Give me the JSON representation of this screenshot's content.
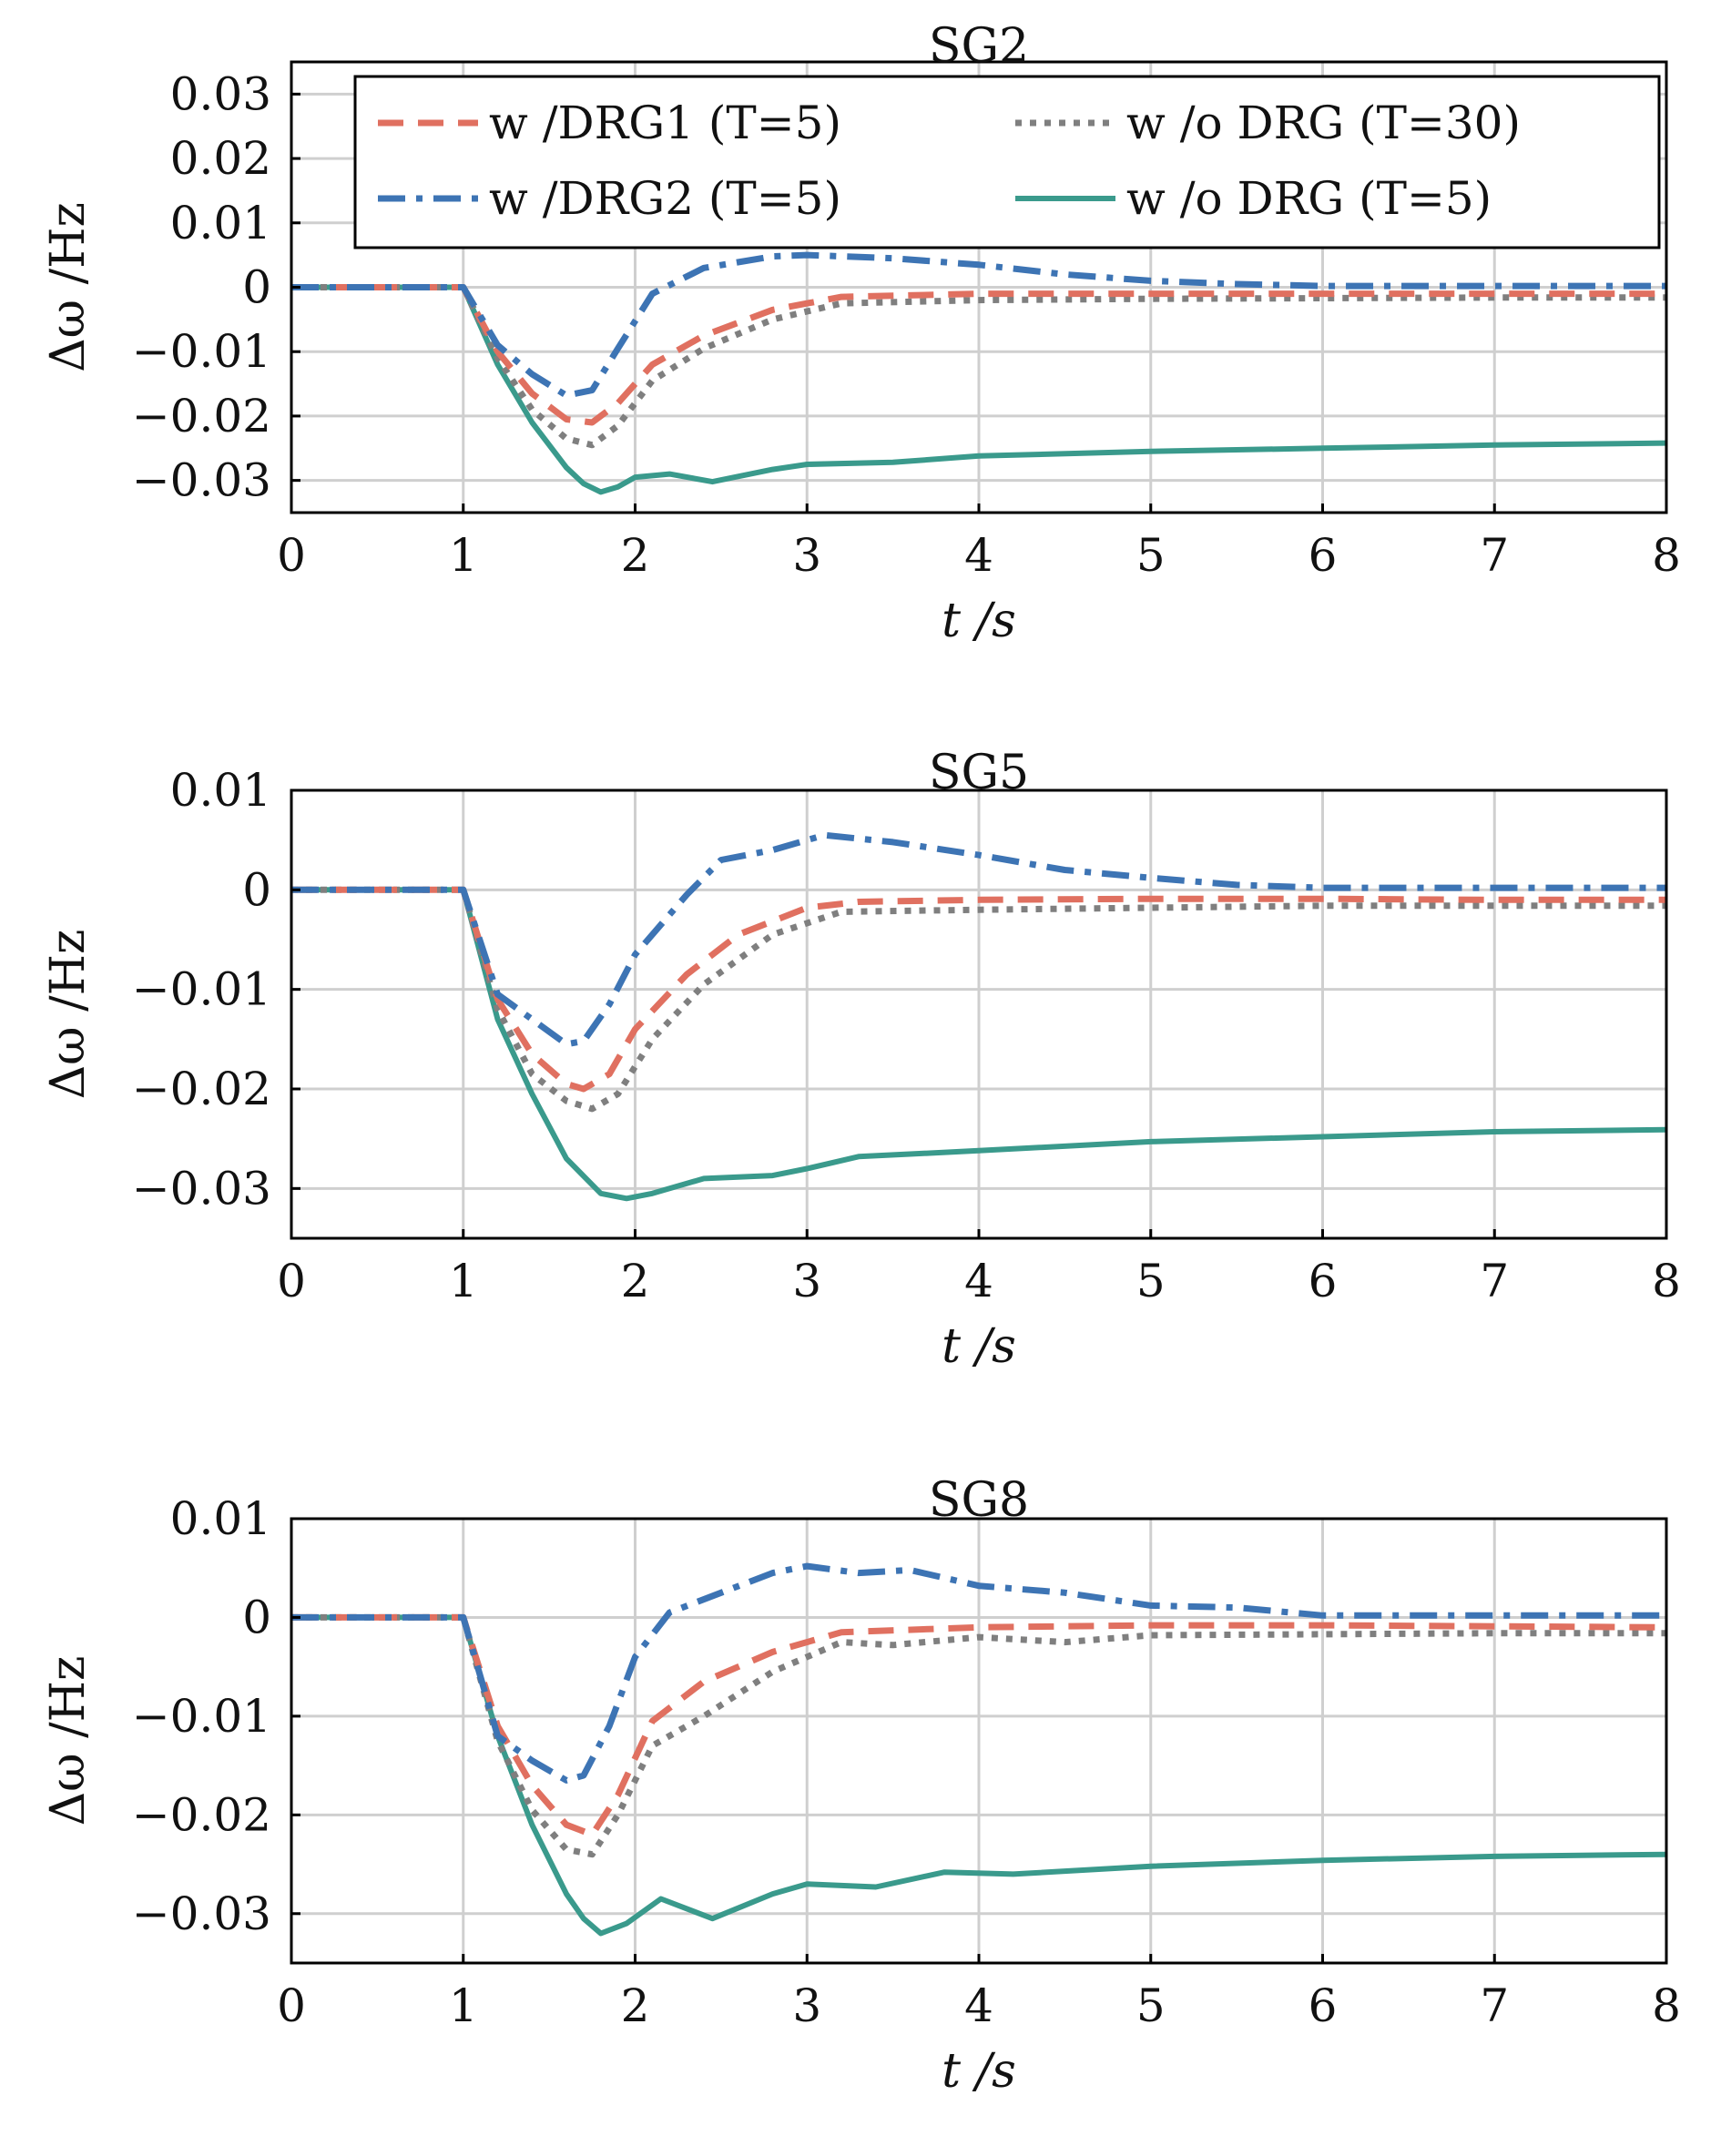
{
  "figure": {
    "legend": {
      "entries": [
        {
          "label": "w /DRG1 (T=5)",
          "color": "#e07060",
          "dash": "dashed"
        },
        {
          "label": "w /o DRG (T=30)",
          "color": "#7f7f7f",
          "dash": "dotted"
        },
        {
          "label": "w /DRG2 (T=5)",
          "color": "#3d74b4",
          "dash": "dashdot"
        },
        {
          "label": "w /o DRG (T=5)",
          "color": "#3a9a8c",
          "dash": "solid"
        }
      ]
    }
  },
  "chart_data": [
    {
      "type": "line",
      "title": "SG2",
      "xlabel": "t /s",
      "ylabel": "Δω /Hz",
      "xlim": [
        0,
        8
      ],
      "ylim": [
        -0.035,
        0.035
      ],
      "xticks": [
        "0",
        "1",
        "2",
        "3",
        "4",
        "5",
        "6",
        "7",
        "8"
      ],
      "yticks": [
        {
          "v": 0.03,
          "t": "0.03"
        },
        {
          "v": 0.02,
          "t": "0.02"
        },
        {
          "v": 0.01,
          "t": "0.01"
        },
        {
          "v": 0,
          "t": "0"
        },
        {
          "v": -0.01,
          "t": "−0.01"
        },
        {
          "v": -0.02,
          "t": "−0.02"
        },
        {
          "v": -0.03,
          "t": "−0.03"
        }
      ],
      "grid": true,
      "legend": "top-right",
      "series": [
        {
          "name": "w /DRG1 (T=5)",
          "color": "#e07060",
          "dash": "dashed",
          "x": [
            0,
            1,
            1.2,
            1.4,
            1.6,
            1.75,
            1.9,
            2.1,
            2.4,
            2.8,
            3.2,
            4,
            5,
            6,
            7,
            8
          ],
          "y": [
            0,
            0,
            -0.01,
            -0.0165,
            -0.0205,
            -0.021,
            -0.018,
            -0.012,
            -0.0075,
            -0.0035,
            -0.0015,
            -0.001,
            -0.001,
            -0.001,
            -0.001,
            -0.001
          ]
        },
        {
          "name": "w /o DRG (T=30)",
          "color": "#7f7f7f",
          "dash": "dotted",
          "x": [
            0,
            1,
            1.2,
            1.4,
            1.6,
            1.75,
            1.9,
            2.1,
            2.4,
            2.8,
            3.2,
            4,
            5,
            6,
            7,
            8
          ],
          "y": [
            0,
            0,
            -0.011,
            -0.019,
            -0.0235,
            -0.0245,
            -0.0215,
            -0.0145,
            -0.0095,
            -0.005,
            -0.0025,
            -0.002,
            -0.0018,
            -0.0017,
            -0.0016,
            -0.0016
          ]
        },
        {
          "name": "w /DRG2 (T=5)",
          "color": "#3d74b4",
          "dash": "dashdot",
          "x": [
            0,
            1,
            1.2,
            1.4,
            1.6,
            1.75,
            1.9,
            2.1,
            2.4,
            2.8,
            3.0,
            3.5,
            4,
            4.5,
            5,
            5.5,
            6,
            7,
            8
          ],
          "y": [
            0,
            0,
            -0.009,
            -0.0135,
            -0.0168,
            -0.016,
            -0.0095,
            -0.001,
            0.003,
            0.0048,
            0.005,
            0.0045,
            0.0035,
            0.002,
            0.001,
            0.0005,
            0.0002,
            0.0002,
            0.0002
          ]
        },
        {
          "name": "w /o DRG (T=5)",
          "color": "#3a9a8c",
          "dash": "solid",
          "x": [
            0,
            1,
            1.2,
            1.4,
            1.6,
            1.7,
            1.8,
            1.9,
            2.0,
            2.2,
            2.45,
            2.8,
            3.0,
            3.5,
            4,
            5,
            6,
            7,
            8
          ],
          "y": [
            0,
            0,
            -0.012,
            -0.021,
            -0.028,
            -0.0305,
            -0.0318,
            -0.031,
            -0.0295,
            -0.029,
            -0.0302,
            -0.0283,
            -0.0275,
            -0.0272,
            -0.0262,
            -0.0255,
            -0.025,
            -0.0245,
            -0.0242
          ]
        }
      ]
    },
    {
      "type": "line",
      "title": "SG5",
      "xlabel": "t /s",
      "ylabel": "Δω /Hz",
      "xlim": [
        0,
        8
      ],
      "ylim": [
        -0.035,
        0.01
      ],
      "xticks": [
        "0",
        "1",
        "2",
        "3",
        "4",
        "5",
        "6",
        "7",
        "8"
      ],
      "yticks": [
        {
          "v": 0.01,
          "t": "0.01"
        },
        {
          "v": 0,
          "t": "0"
        },
        {
          "v": -0.01,
          "t": "−0.01"
        },
        {
          "v": -0.02,
          "t": "−0.02"
        },
        {
          "v": -0.03,
          "t": "−0.03"
        }
      ],
      "grid": true,
      "series": [
        {
          "name": "w /DRG1 (T=5)",
          "color": "#e07060",
          "dash": "dashed",
          "x": [
            0,
            1,
            1.2,
            1.4,
            1.6,
            1.7,
            1.85,
            2.0,
            2.3,
            2.6,
            3.0,
            3.3,
            4,
            5,
            6,
            7,
            8
          ],
          "y": [
            0,
            0,
            -0.011,
            -0.0165,
            -0.0195,
            -0.02,
            -0.0185,
            -0.014,
            -0.0085,
            -0.0045,
            -0.0018,
            -0.0012,
            -0.001,
            -0.0009,
            -0.0009,
            -0.001,
            -0.001
          ]
        },
        {
          "name": "w /o DRG (T=30)",
          "color": "#7f7f7f",
          "dash": "dotted",
          "x": [
            0,
            1,
            1.2,
            1.4,
            1.6,
            1.75,
            1.9,
            2.1,
            2.4,
            2.8,
            3.2,
            4,
            5,
            6,
            7,
            8
          ],
          "y": [
            0,
            0,
            -0.012,
            -0.0185,
            -0.0212,
            -0.022,
            -0.0205,
            -0.015,
            -0.0095,
            -0.0045,
            -0.0022,
            -0.002,
            -0.0018,
            -0.0016,
            -0.0016,
            -0.0016
          ]
        },
        {
          "name": "w /DRG2 (T=5)",
          "color": "#3d74b4",
          "dash": "dashdot",
          "x": [
            0,
            1,
            1.2,
            1.4,
            1.6,
            1.7,
            1.85,
            2.0,
            2.3,
            2.5,
            2.8,
            3.1,
            3.5,
            4,
            4.5,
            5,
            5.5,
            6,
            7,
            8
          ],
          "y": [
            0,
            0,
            -0.0105,
            -0.013,
            -0.0155,
            -0.0152,
            -0.0115,
            -0.0065,
            -0.0005,
            0.003,
            0.004,
            0.0055,
            0.0048,
            0.0035,
            0.002,
            0.0012,
            0.0005,
            0.0002,
            0.0002,
            0.0002
          ]
        },
        {
          "name": "w /o DRG (T=5)",
          "color": "#3a9a8c",
          "dash": "solid",
          "x": [
            0,
            1,
            1.2,
            1.4,
            1.6,
            1.8,
            1.95,
            2.1,
            2.4,
            2.8,
            3.0,
            3.3,
            4,
            5,
            6,
            7,
            8
          ],
          "y": [
            0,
            0,
            -0.013,
            -0.0205,
            -0.027,
            -0.0305,
            -0.031,
            -0.0305,
            -0.029,
            -0.0287,
            -0.028,
            -0.0268,
            -0.0262,
            -0.0253,
            -0.0248,
            -0.0243,
            -0.0241
          ]
        }
      ]
    },
    {
      "type": "line",
      "title": "SG8",
      "xlabel": "t /s",
      "ylabel": "Δω /Hz",
      "xlim": [
        0,
        8
      ],
      "ylim": [
        -0.035,
        0.01
      ],
      "xticks": [
        "0",
        "1",
        "2",
        "3",
        "4",
        "5",
        "6",
        "7",
        "8"
      ],
      "yticks": [
        {
          "v": 0.01,
          "t": "0.01"
        },
        {
          "v": 0,
          "t": "0"
        },
        {
          "v": -0.01,
          "t": "−0.01"
        },
        {
          "v": -0.02,
          "t": "−0.02"
        },
        {
          "v": -0.03,
          "t": "−0.03"
        }
      ],
      "grid": true,
      "series": [
        {
          "name": "w /DRG1 (T=5)",
          "color": "#e07060",
          "dash": "dashed",
          "x": [
            0,
            1,
            1.2,
            1.4,
            1.6,
            1.75,
            1.9,
            2.1,
            2.4,
            2.8,
            3.2,
            4,
            5,
            6,
            7,
            8
          ],
          "y": [
            0,
            0,
            -0.011,
            -0.017,
            -0.021,
            -0.022,
            -0.018,
            -0.0105,
            -0.0065,
            -0.0035,
            -0.0015,
            -0.001,
            -0.0008,
            -0.0008,
            -0.0009,
            -0.001
          ]
        },
        {
          "name": "w /o DRG (T=30)",
          "color": "#7f7f7f",
          "dash": "dotted",
          "x": [
            0,
            1,
            1.2,
            1.4,
            1.6,
            1.75,
            1.9,
            2.1,
            2.4,
            2.8,
            3.2,
            3.5,
            4,
            4.5,
            5,
            6,
            7,
            8
          ],
          "y": [
            0,
            0,
            -0.0125,
            -0.0195,
            -0.0235,
            -0.024,
            -0.02,
            -0.013,
            -0.01,
            -0.0055,
            -0.0025,
            -0.0028,
            -0.002,
            -0.0025,
            -0.0018,
            -0.0017,
            -0.0016,
            -0.0016
          ]
        },
        {
          "name": "w /DRG2 (T=5)",
          "color": "#3d74b4",
          "dash": "dashdot",
          "x": [
            0,
            1,
            1.2,
            1.4,
            1.6,
            1.7,
            1.85,
            2.0,
            2.2,
            2.5,
            2.8,
            3.0,
            3.3,
            3.6,
            4,
            4.5,
            5,
            5.5,
            6,
            7,
            8
          ],
          "y": [
            0,
            0,
            -0.012,
            -0.0145,
            -0.0165,
            -0.016,
            -0.011,
            -0.004,
            0.0005,
            0.0025,
            0.0045,
            0.0052,
            0.0045,
            0.0048,
            0.0032,
            0.0025,
            0.0012,
            0.001,
            0.0002,
            0.0002,
            0.0002
          ]
        },
        {
          "name": "w /o DRG (T=5)",
          "color": "#3a9a8c",
          "dash": "solid",
          "x": [
            0,
            1,
            1.2,
            1.4,
            1.6,
            1.7,
            1.8,
            1.95,
            2.15,
            2.45,
            2.8,
            3.0,
            3.4,
            3.8,
            4.2,
            5,
            6,
            7,
            8
          ],
          "y": [
            0,
            0,
            -0.012,
            -0.021,
            -0.028,
            -0.0305,
            -0.032,
            -0.031,
            -0.0285,
            -0.0305,
            -0.028,
            -0.027,
            -0.0273,
            -0.0258,
            -0.026,
            -0.0252,
            -0.0246,
            -0.0242,
            -0.024
          ]
        }
      ]
    }
  ]
}
